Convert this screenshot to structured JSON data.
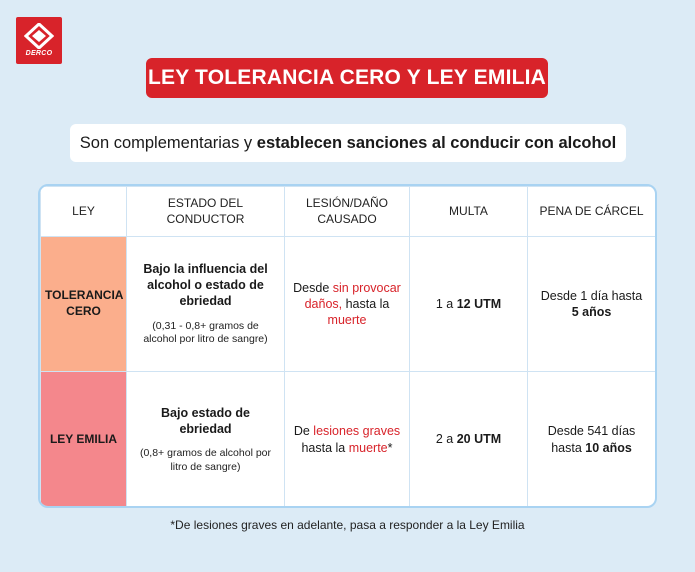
{
  "logo": {
    "text": "DERCO",
    "icon": "derco-logo-icon",
    "color": "#d8232a"
  },
  "title": "LEY TOLERANCIA CERO Y LEY EMILIA",
  "subtitle": {
    "plain": "Son complementarias y ",
    "bold": "establecen sanciones al conducir con alcohol"
  },
  "table": {
    "headers": [
      "LEY",
      "ESTADO DEL CONDUCTOR",
      "LESIÓN/DAÑO CAUSADO",
      "MULTA",
      "PENA DE CÁRCEL"
    ],
    "rows": [
      {
        "law": "TOLERANCIA CERO",
        "condition_main": "Bajo la influencia del alcohol o estado de ebriedad",
        "condition_note": "(0,31 - 0,8+ gramos de alcohol por litro de sangre)",
        "damage": {
          "a": "Desde ",
          "b": "sin provocar daños,",
          "c": " hasta la ",
          "d": "muerte"
        },
        "fine": {
          "a": "1 a ",
          "b": "12 UTM"
        },
        "jail": {
          "a": "Desde 1 día hasta ",
          "b": "5 años"
        },
        "color": "#fbae8c"
      },
      {
        "law": "LEY EMILIA",
        "condition_main": "Bajo estado de ebriedad",
        "condition_note": "(0,8+ gramos de alcohol por litro de sangre)",
        "damage": {
          "a": "De ",
          "b": "lesiones graves",
          "c": " hasta la ",
          "d": "muerte",
          "e": "*"
        },
        "fine": {
          "a": "2 a ",
          "b": "20 UTM"
        },
        "jail": {
          "a": "Desde 541 días hasta ",
          "b": "10 años"
        },
        "color": "#f4878c"
      }
    ]
  },
  "footnote": "*De lesiones graves en adelante, pasa a responder a la Ley Emilia",
  "colors": {
    "background": "#dcebf6",
    "accent": "#d8232a",
    "table_border": "#a9d3f2"
  }
}
